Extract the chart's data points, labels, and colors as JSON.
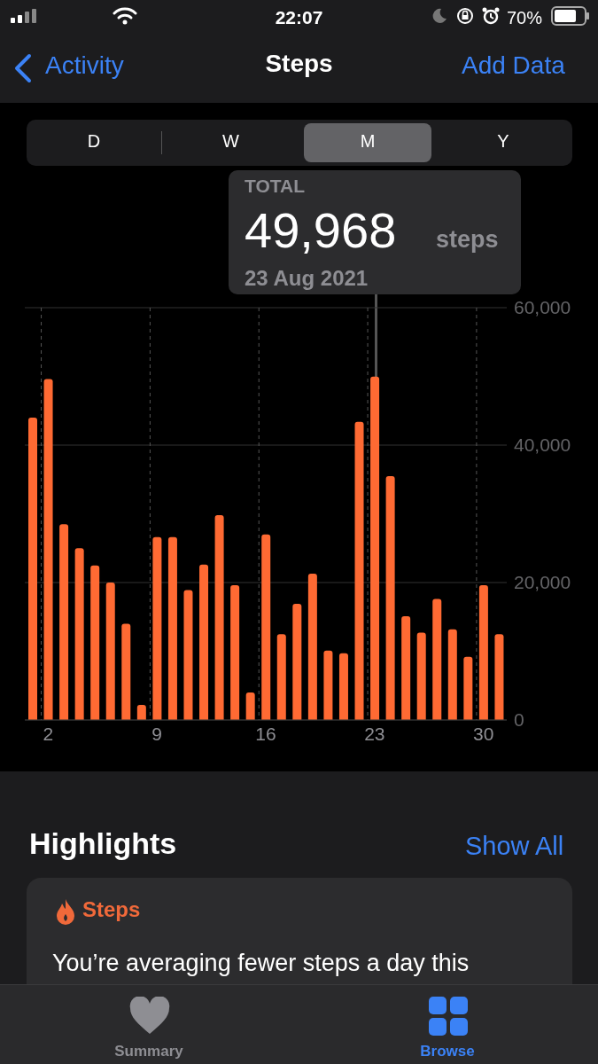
{
  "chart_data": {
    "type": "bar",
    "title": "Steps",
    "categories": [
      null,
      "2",
      null,
      null,
      null,
      null,
      null,
      null,
      "9",
      null,
      null,
      null,
      null,
      null,
      null,
      "16",
      null,
      null,
      null,
      null,
      null,
      null,
      "23",
      null,
      null,
      null,
      null,
      null,
      null,
      "30",
      null
    ],
    "values": [
      44000,
      49600,
      28500,
      25000,
      22500,
      20000,
      14000,
      2200,
      26600,
      26600,
      18900,
      22600,
      29800,
      19600,
      4000,
      27000,
      12500,
      16900,
      21300,
      10100,
      9700,
      43400,
      49968,
      35500,
      15100,
      12700,
      17600,
      13200,
      9200,
      19600,
      12500
    ],
    "color": "#ff6a33",
    "ylim": [
      0,
      60000
    ],
    "yticks": [
      0,
      {
        "value": 20000,
        "label": "20,000"
      },
      {
        "value": 40000,
        "label": "40,000"
      },
      {
        "value": 60000,
        "label": "60,000"
      }
    ],
    "grid": true,
    "annotations": [
      "TOTAL",
      "49,968",
      "steps",
      "23 Aug 2021",
      "22:07",
      "70%",
      "Activity",
      "Add Data",
      "D",
      "W",
      "M",
      "Y",
      "Highlights",
      "Show All",
      "Steps",
      "You’re averaging fewer steps a day this",
      "Summary",
      "Browse"
    ]
  }
}
